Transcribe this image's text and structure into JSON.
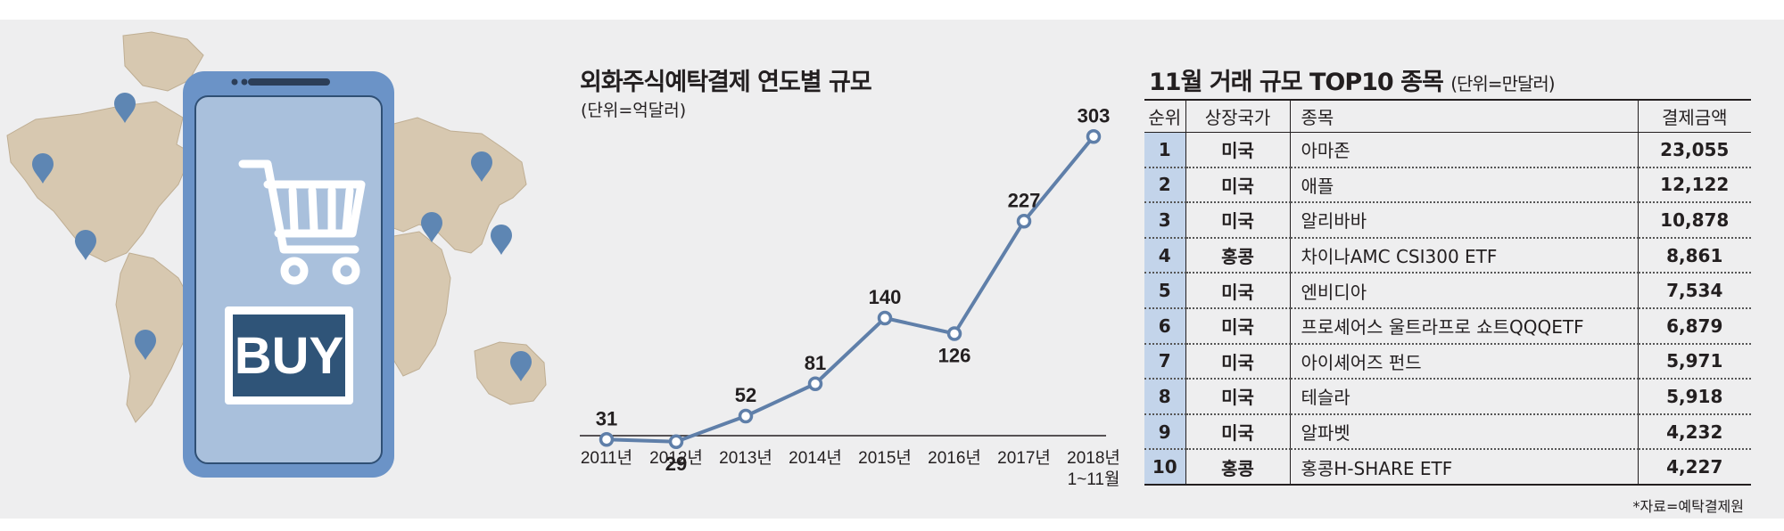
{
  "chart_data": [
    {
      "type": "line",
      "title": "외화주식예탁결제 연도별 규모",
      "unit_label": "(단위=억달러)",
      "categories": [
        "2011년",
        "2012년",
        "2013년",
        "2014년",
        "2015년",
        "2016년",
        "2017년",
        "2018년 1~11월"
      ],
      "category_lines": [
        [
          "2011년"
        ],
        [
          "2012년"
        ],
        [
          "2013년"
        ],
        [
          "2014년"
        ],
        [
          "2015년"
        ],
        [
          "2016년"
        ],
        [
          "2017년"
        ],
        [
          "2018년",
          "1~11월"
        ]
      ],
      "values": [
        31,
        29,
        52,
        81,
        140,
        126,
        227,
        303
      ],
      "ylim": [
        0,
        320
      ],
      "grid": false,
      "legend": "none",
      "colors": {
        "line": "#5f7fa9",
        "marker_fill": "#ffffff"
      }
    },
    {
      "type": "table",
      "title": "11월 거래 규모 TOP10 종목",
      "unit_label": "(단위=만달러)",
      "columns": [
        "순위",
        "상장국가",
        "종목",
        "결제금액"
      ],
      "rows": [
        [
          "1",
          "미국",
          "아마존",
          "23,055"
        ],
        [
          "2",
          "미국",
          "애플",
          "12,122"
        ],
        [
          "3",
          "미국",
          "알리바바",
          "10,878"
        ],
        [
          "4",
          "홍콩",
          "차이나AMC CSI300 ETF",
          "8,861"
        ],
        [
          "5",
          "미국",
          "엔비디아",
          "7,534"
        ],
        [
          "6",
          "미국",
          "프로셰어스 울트라프로 쇼트QQQETF",
          "6,879"
        ],
        [
          "7",
          "미국",
          "아이셰어즈 펀드",
          "5,971"
        ],
        [
          "8",
          "미국",
          "테슬라",
          "5,918"
        ],
        [
          "9",
          "미국",
          "알파벳",
          "4,232"
        ],
        [
          "10",
          "홍콩",
          "홍콩H-SHARE ETF",
          "4,227"
        ]
      ]
    }
  ],
  "illustration": {
    "buy_label": "BUY",
    "icons": [
      "world-map",
      "smartphone",
      "shopping-cart-icon",
      "map-pin-icon"
    ],
    "colors": {
      "phone_body": "#6b93c7",
      "phone_screen": "#a9c0dc",
      "buy_box": "#2f5478",
      "map_land": "#d7c8b0",
      "pin": "#5e86b3"
    }
  },
  "source": "*자료=예탁결제원"
}
